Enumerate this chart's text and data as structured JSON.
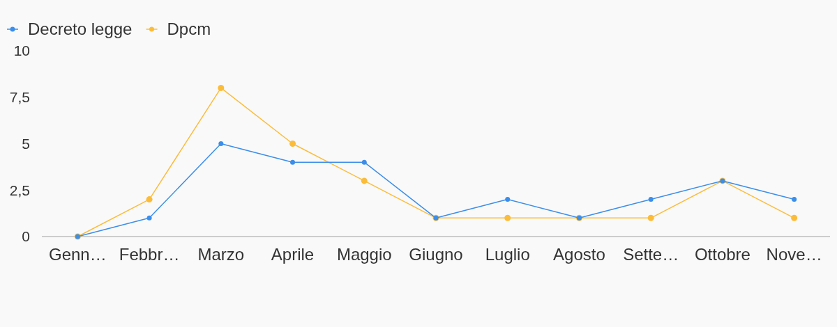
{
  "chart_data": {
    "type": "line",
    "categories": [
      "Genn…",
      "Febbr…",
      "Marzo",
      "Aprile",
      "Maggio",
      "Giugno",
      "Luglio",
      "Agosto",
      "Sette…",
      "Ottobre",
      "Nove…"
    ],
    "series": [
      {
        "name": "Decreto legge",
        "color": "#3b8eea",
        "values": [
          0,
          1,
          5,
          4,
          4,
          1,
          2,
          1,
          2,
          3,
          2
        ]
      },
      {
        "name": "Dpcm",
        "color": "#fbbc3a",
        "values": [
          0,
          2,
          8,
          5,
          3,
          1,
          1,
          1,
          1,
          3,
          1
        ]
      }
    ],
    "ylim": [
      0,
      10
    ],
    "yticks": [
      0,
      {
        "value": 2.5,
        "label": "2,5"
      },
      5,
      {
        "value": 7.5,
        "label": "7,5"
      },
      10
    ],
    "grid": false,
    "legend": "top left",
    "marker": "circle",
    "line_style": "solid"
  }
}
